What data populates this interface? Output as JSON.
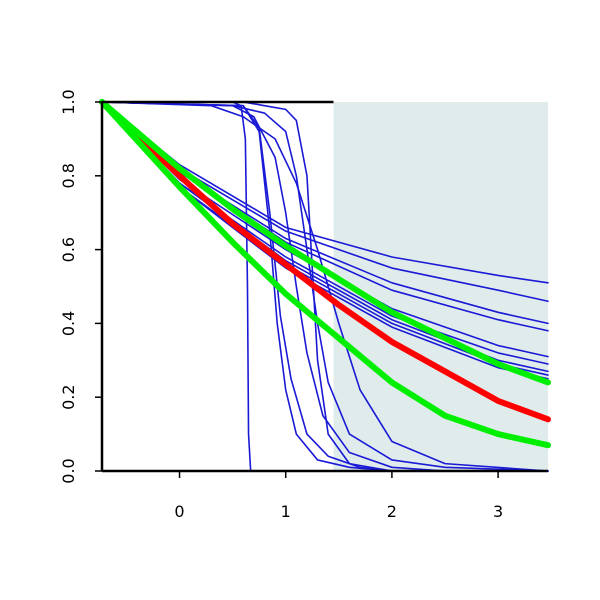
{
  "chart_data": {
    "type": "line",
    "title": "",
    "xlabel": "",
    "ylabel": "",
    "xlim": [
      -0.73,
      3.47
    ],
    "ylim": [
      0,
      1
    ],
    "x_ticks": [
      0,
      1,
      2,
      3
    ],
    "x_tick_labels": [
      "0",
      "1",
      "2",
      "3"
    ],
    "y_ticks": [
      0,
      0.2,
      0.4,
      0.6,
      0.8,
      1
    ],
    "y_tick_labels": [
      "0.0",
      "0.2",
      "0.4",
      "0.6",
      "0.8",
      "1.0"
    ],
    "grid": false,
    "legend": "none",
    "shaded_region": {
      "x_from": 1.45,
      "x_to": 3.47,
      "color": "#e0ecec"
    },
    "colors": {
      "blue": "#1a1ad6",
      "red": "#ff0000",
      "green": "#00ee00",
      "axis": "#000000"
    },
    "series": [
      {
        "color": "#1a1ad6",
        "width": "thin",
        "points": [
          [
            -0.73,
            1.0
          ],
          [
            0.0,
            0.83
          ],
          [
            1.0,
            0.66
          ],
          [
            2.0,
            0.58
          ],
          [
            3.0,
            0.53
          ],
          [
            3.47,
            0.51
          ]
        ]
      },
      {
        "color": "#1a1ad6",
        "width": "thin",
        "points": [
          [
            -0.73,
            1.0
          ],
          [
            0.0,
            0.82
          ],
          [
            1.0,
            0.65
          ],
          [
            2.0,
            0.55
          ],
          [
            3.0,
            0.49
          ],
          [
            3.47,
            0.46
          ]
        ]
      },
      {
        "color": "#1a1ad6",
        "width": "thin",
        "points": [
          [
            -0.73,
            1.0
          ],
          [
            0.0,
            0.81
          ],
          [
            1.0,
            0.63
          ],
          [
            2.0,
            0.51
          ],
          [
            3.0,
            0.43
          ],
          [
            3.47,
            0.4
          ]
        ]
      },
      {
        "color": "#1a1ad6",
        "width": "thin",
        "points": [
          [
            -0.73,
            1.0
          ],
          [
            0.0,
            0.81
          ],
          [
            1.0,
            0.62
          ],
          [
            2.0,
            0.49
          ],
          [
            3.0,
            0.41
          ],
          [
            3.47,
            0.38
          ]
        ]
      },
      {
        "color": "#1a1ad6",
        "width": "thin",
        "points": [
          [
            -0.73,
            1.0
          ],
          [
            0.0,
            0.79
          ],
          [
            1.0,
            0.6
          ],
          [
            2.0,
            0.44
          ],
          [
            3.0,
            0.34
          ],
          [
            3.47,
            0.31
          ]
        ]
      },
      {
        "color": "#1a1ad6",
        "width": "thin",
        "points": [
          [
            -0.73,
            1.0
          ],
          [
            0.0,
            0.78
          ],
          [
            1.0,
            0.58
          ],
          [
            2.0,
            0.42
          ],
          [
            3.0,
            0.32
          ],
          [
            3.47,
            0.29
          ]
        ]
      },
      {
        "color": "#1a1ad6",
        "width": "thin",
        "points": [
          [
            -0.73,
            1.0
          ],
          [
            0.0,
            0.78
          ],
          [
            1.0,
            0.57
          ],
          [
            2.0,
            0.41
          ],
          [
            3.0,
            0.3
          ],
          [
            3.47,
            0.27
          ]
        ]
      },
      {
        "color": "#1a1ad6",
        "width": "thin",
        "points": [
          [
            -0.73,
            1.0
          ],
          [
            0.0,
            0.77
          ],
          [
            1.0,
            0.56
          ],
          [
            2.0,
            0.4
          ],
          [
            3.0,
            0.29
          ],
          [
            3.47,
            0.26
          ]
        ]
      },
      {
        "color": "#1a1ad6",
        "width": "thin",
        "points": [
          [
            -0.73,
            1.0
          ],
          [
            0.0,
            0.77
          ],
          [
            1.0,
            0.55
          ],
          [
            2.0,
            0.39
          ],
          [
            3.0,
            0.28
          ],
          [
            3.47,
            0.25
          ]
        ]
      },
      {
        "color": "#1a1ad6",
        "width": "thin",
        "points": [
          [
            -0.73,
            1.0
          ],
          [
            0.5,
            1.0
          ],
          [
            0.58,
            0.99
          ],
          [
            0.62,
            0.9
          ],
          [
            0.64,
            0.5
          ],
          [
            0.65,
            0.1
          ],
          [
            0.67,
            0.0
          ],
          [
            3.47,
            0.0
          ]
        ]
      },
      {
        "color": "#1a1ad6",
        "width": "thin",
        "points": [
          [
            -0.73,
            1.0
          ],
          [
            0.6,
            0.99
          ],
          [
            0.75,
            0.92
          ],
          [
            0.85,
            0.65
          ],
          [
            0.92,
            0.4
          ],
          [
            1.0,
            0.22
          ],
          [
            1.1,
            0.1
          ],
          [
            1.3,
            0.03
          ],
          [
            1.6,
            0.01
          ],
          [
            2.0,
            0.0
          ],
          [
            3.47,
            0.0
          ]
        ]
      },
      {
        "color": "#1a1ad6",
        "width": "thin",
        "points": [
          [
            -0.73,
            1.0
          ],
          [
            0.6,
            0.99
          ],
          [
            0.75,
            0.93
          ],
          [
            0.85,
            0.7
          ],
          [
            0.95,
            0.42
          ],
          [
            1.05,
            0.25
          ],
          [
            1.2,
            0.1
          ],
          [
            1.4,
            0.04
          ],
          [
            1.7,
            0.01
          ],
          [
            2.0,
            0.0
          ],
          [
            3.47,
            0.0
          ]
        ]
      },
      {
        "color": "#1a1ad6",
        "width": "thin",
        "points": [
          [
            -0.73,
            1.0
          ],
          [
            0.5,
            0.99
          ],
          [
            0.7,
            0.96
          ],
          [
            0.9,
            0.85
          ],
          [
            1.0,
            0.7
          ],
          [
            1.1,
            0.5
          ],
          [
            1.2,
            0.32
          ],
          [
            1.35,
            0.15
          ],
          [
            1.6,
            0.05
          ],
          [
            2.0,
            0.01
          ],
          [
            2.5,
            0.0
          ],
          [
            3.47,
            0.0
          ]
        ]
      },
      {
        "color": "#1a1ad6",
        "width": "thin",
        "points": [
          [
            -0.73,
            1.0
          ],
          [
            0.5,
            0.99
          ],
          [
            0.8,
            0.97
          ],
          [
            1.0,
            0.92
          ],
          [
            1.1,
            0.8
          ],
          [
            1.2,
            0.6
          ],
          [
            1.3,
            0.4
          ],
          [
            1.4,
            0.24
          ],
          [
            1.6,
            0.1
          ],
          [
            2.0,
            0.03
          ],
          [
            2.5,
            0.01
          ],
          [
            3.47,
            0.0
          ]
        ]
      },
      {
        "color": "#1a1ad6",
        "width": "thin",
        "points": [
          [
            -0.73,
            1.0
          ],
          [
            0.3,
            0.99
          ],
          [
            0.6,
            0.96
          ],
          [
            0.9,
            0.9
          ],
          [
            1.1,
            0.78
          ],
          [
            1.3,
            0.6
          ],
          [
            1.5,
            0.4
          ],
          [
            1.7,
            0.22
          ],
          [
            2.0,
            0.08
          ],
          [
            2.5,
            0.02
          ],
          [
            3.47,
            0.0
          ]
        ]
      },
      {
        "color": "#1a1ad6",
        "width": "thin",
        "points": [
          [
            -0.73,
            1.0
          ],
          [
            0.6,
            1.0
          ],
          [
            0.8,
            0.99
          ],
          [
            1.0,
            0.98
          ],
          [
            1.1,
            0.95
          ],
          [
            1.2,
            0.8
          ],
          [
            1.25,
            0.55
          ],
          [
            1.3,
            0.3
          ],
          [
            1.4,
            0.1
          ],
          [
            1.6,
            0.02
          ],
          [
            2.0,
            0.0
          ],
          [
            3.47,
            0.0
          ]
        ]
      },
      {
        "color": "#ff0000",
        "width": "thick",
        "points": [
          [
            -0.73,
            1.0
          ],
          [
            0.0,
            0.8
          ],
          [
            0.5,
            0.67
          ],
          [
            1.0,
            0.56
          ],
          [
            1.5,
            0.45
          ],
          [
            2.0,
            0.35
          ],
          [
            2.5,
            0.27
          ],
          [
            3.0,
            0.19
          ],
          [
            3.47,
            0.14
          ]
        ]
      },
      {
        "color": "#00ee00",
        "width": "thick",
        "points": [
          [
            -0.73,
            1.0
          ],
          [
            0.0,
            0.82
          ],
          [
            0.5,
            0.71
          ],
          [
            1.0,
            0.61
          ],
          [
            1.5,
            0.52
          ],
          [
            2.0,
            0.43
          ],
          [
            2.5,
            0.36
          ],
          [
            3.0,
            0.29
          ],
          [
            3.47,
            0.24
          ]
        ]
      },
      {
        "color": "#00ee00",
        "width": "thick",
        "points": [
          [
            -0.73,
            1.0
          ],
          [
            0.0,
            0.77
          ],
          [
            0.5,
            0.62
          ],
          [
            1.0,
            0.48
          ],
          [
            1.5,
            0.36
          ],
          [
            2.0,
            0.24
          ],
          [
            2.5,
            0.15
          ],
          [
            3.0,
            0.1
          ],
          [
            3.47,
            0.07
          ]
        ]
      }
    ]
  }
}
